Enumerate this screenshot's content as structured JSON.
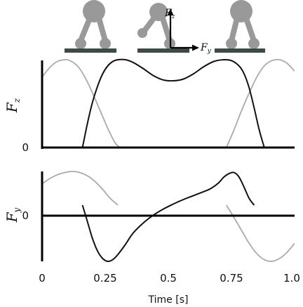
{
  "chart_data": [
    {
      "type": "line",
      "ylabel": "F",
      "ylabel_sub": "z",
      "xlim": [
        0,
        1.0
      ],
      "ylim": [
        0,
        1.0
      ],
      "y_ticks": [
        "0"
      ],
      "series": [
        {
          "color": "#111111",
          "x": [
            0.16,
            0.18,
            0.2,
            0.22,
            0.24,
            0.26,
            0.28,
            0.3,
            0.33,
            0.36,
            0.4,
            0.44,
            0.48,
            0.52,
            0.56,
            0.6,
            0.64,
            0.68,
            0.72,
            0.75,
            0.78,
            0.8,
            0.82,
            0.84,
            0.86,
            0.88
          ],
          "y": [
            0,
            0.28,
            0.52,
            0.7,
            0.84,
            0.93,
            0.98,
            1.0,
            1.0,
            0.97,
            0.9,
            0.82,
            0.77,
            0.76,
            0.78,
            0.84,
            0.92,
            0.98,
            1.0,
            0.99,
            0.93,
            0.84,
            0.68,
            0.45,
            0.2,
            0
          ]
        },
        {
          "color": "#aaaaaa",
          "x": [
            0.0,
            0.03,
            0.06,
            0.09,
            0.11,
            0.14,
            0.17,
            0.2,
            0.23,
            0.26,
            0.29,
            0.31
          ],
          "y": [
            0.8,
            0.91,
            0.98,
            1.0,
            0.99,
            0.93,
            0.8,
            0.62,
            0.42,
            0.22,
            0.05,
            0
          ]
        },
        {
          "color": "#aaaaaa",
          "x": [
            0.73,
            0.76,
            0.79,
            0.82,
            0.85,
            0.88,
            0.91,
            0.94,
            0.97,
            1.0
          ],
          "y": [
            0,
            0.2,
            0.42,
            0.62,
            0.8,
            0.93,
            0.99,
            1.0,
            0.96,
            0.87
          ]
        }
      ]
    },
    {
      "type": "line",
      "xlabel": "Time [s]",
      "ylabel": "F",
      "ylabel_sub": "y",
      "xlim": [
        0,
        1.0
      ],
      "ylim": [
        -1.0,
        0.6
      ],
      "x_ticks": [
        "0",
        "0.25",
        "0.5",
        "0.75",
        "1.0"
      ],
      "x_tick_values": [
        0,
        0.25,
        0.5,
        0.75,
        1.0
      ],
      "y_ticks": [
        "0"
      ],
      "series": [
        {
          "color": "#111111",
          "x": [
            0.16,
            0.18,
            0.2,
            0.22,
            0.24,
            0.26,
            0.28,
            0.3,
            0.33,
            0.36,
            0.4,
            0.44,
            0.48,
            0.52,
            0.56,
            0.6,
            0.64,
            0.67,
            0.7,
            0.72,
            0.74,
            0.76,
            0.78,
            0.8,
            0.82,
            0.84
          ],
          "y": [
            0,
            -0.3,
            -0.6,
            -0.82,
            -0.95,
            -1.0,
            -0.97,
            -0.88,
            -0.7,
            -0.5,
            -0.32,
            -0.18,
            -0.07,
            0.02,
            0.1,
            0.17,
            0.24,
            0.3,
            0.4,
            0.5,
            0.56,
            0.58,
            0.5,
            0.32,
            0.12,
            0
          ]
        },
        {
          "color": "#aaaaaa",
          "x": [
            0.0,
            0.03,
            0.06,
            0.09,
            0.12,
            0.15,
            0.18,
            0.21,
            0.24,
            0.27,
            0.3
          ],
          "y": [
            0.38,
            0.47,
            0.54,
            0.58,
            0.6,
            0.58,
            0.52,
            0.42,
            0.28,
            0.12,
            0
          ]
        },
        {
          "color": "#aaaaaa",
          "x": [
            0.73,
            0.76,
            0.79,
            0.82,
            0.85,
            0.88,
            0.91,
            0.94,
            0.97,
            1.0
          ],
          "y": [
            0,
            -0.22,
            -0.45,
            -0.68,
            -0.86,
            -0.97,
            -1.0,
            -0.95,
            -0.84,
            -0.68
          ]
        }
      ]
    }
  ],
  "illustration": {
    "force_z_label": "F",
    "force_z_sub": "z",
    "force_y_label": "F",
    "force_y_sub": "y"
  }
}
